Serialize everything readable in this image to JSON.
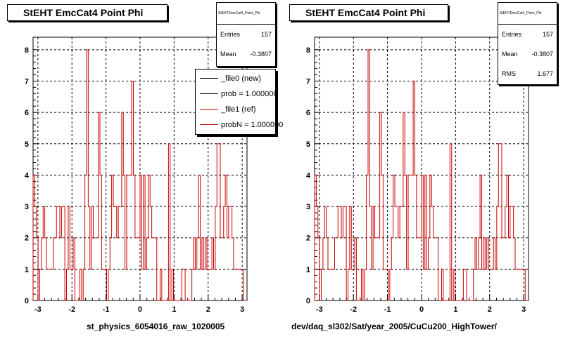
{
  "colors": {
    "axis": "#000000",
    "grid": "#000000",
    "hist": "#cc0000",
    "new": "#000000"
  },
  "footer_text": "",
  "panels": [
    {
      "title": "StEHT EmcCat4 Point Phi",
      "stats_name": "StEHTEmcCat4_Point_Phi",
      "stats": [
        {
          "label": "Entries",
          "value": "157"
        },
        {
          "label": "Mean",
          "value": "-0.3807"
        }
      ],
      "x_title": "st_physics_6054016_raw_1020005",
      "legend": [
        {
          "label": "_file0 (new)",
          "color": "#000000"
        },
        {
          "label": "prob = 1.000000",
          "color": "#000000"
        },
        {
          "label": "_file1 (ref)",
          "color": "#cc0000"
        },
        {
          "label": "probN = 1.000000",
          "color": "#cc0000"
        }
      ]
    },
    {
      "title": "StEHT EmcCat4 Point Phi",
      "stats_name": "StEHTEmcCat4_Point_Phi",
      "stats": [
        {
          "label": "Entries",
          "value": "157"
        },
        {
          "label": "Mean",
          "value": "-0.3807"
        },
        {
          "label": "RMS",
          "value": "1.677"
        }
      ],
      "x_title": "dev/daq_sl302/Sat/year_2005/CuCu200_HighTower/",
      "legend": []
    }
  ],
  "chart_data": {
    "type": "histogram",
    "xlim": [
      -3.1416,
      3.1416
    ],
    "ylim": [
      0,
      8.4
    ],
    "x_ticks": [
      -3,
      -2,
      -1,
      0,
      1,
      2,
      3
    ],
    "y_ticks": [
      0,
      1,
      2,
      3,
      4,
      5,
      6,
      7,
      8
    ],
    "grid": true,
    "bins": 128,
    "series": [
      {
        "name": "_file1 (ref)",
        "values": [
          4,
          3,
          2,
          0,
          1,
          2,
          3,
          2,
          1,
          1,
          1,
          1,
          2,
          2,
          3,
          3,
          2,
          3,
          3,
          0,
          1,
          3,
          1,
          1,
          2,
          0,
          0,
          0,
          1,
          0,
          1,
          4,
          8,
          3,
          1,
          3,
          2,
          2,
          2,
          6,
          4,
          1,
          1,
          1,
          0,
          1,
          2,
          4,
          3,
          3,
          2,
          3,
          3,
          6,
          4,
          1,
          4,
          4,
          4,
          7,
          4,
          2,
          2,
          2,
          4,
          1,
          4,
          1,
          2,
          4,
          3,
          2,
          2,
          2,
          0,
          0,
          1,
          0,
          0,
          0,
          0,
          5,
          0,
          1,
          0,
          0,
          0,
          0,
          0,
          1,
          1,
          0,
          0,
          0,
          0,
          1,
          2,
          1,
          2,
          4,
          1,
          2,
          1,
          2,
          1,
          1,
          1,
          2,
          1,
          3,
          5,
          5,
          2,
          2,
          3,
          4,
          2,
          3,
          3,
          2,
          1,
          1,
          1,
          1,
          1,
          1,
          0,
          0
        ]
      }
    ]
  }
}
